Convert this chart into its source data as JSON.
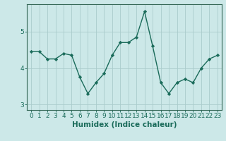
{
  "x": [
    0,
    1,
    2,
    3,
    4,
    5,
    6,
    7,
    8,
    9,
    10,
    11,
    12,
    13,
    14,
    15,
    16,
    17,
    18,
    19,
    20,
    21,
    22,
    23
  ],
  "y": [
    4.45,
    4.45,
    4.25,
    4.25,
    4.4,
    4.35,
    3.75,
    3.3,
    3.6,
    3.85,
    4.35,
    4.7,
    4.7,
    4.85,
    5.55,
    4.6,
    3.6,
    3.3,
    3.6,
    3.7,
    3.6,
    4.0,
    4.25,
    4.35
  ],
  "line_color": "#1a6b5a",
  "marker": "D",
  "marker_size": 2.2,
  "line_width": 1.0,
  "bg_color": "#cce8e8",
  "grid_color": "#aacccc",
  "xlabel": "Humidex (Indice chaleur)",
  "ylim": [
    2.85,
    5.75
  ],
  "yticks": [
    3,
    4,
    5
  ],
  "xlim": [
    -0.5,
    23.5
  ],
  "xticks": [
    0,
    1,
    2,
    3,
    4,
    5,
    6,
    7,
    8,
    9,
    10,
    11,
    12,
    13,
    14,
    15,
    16,
    17,
    18,
    19,
    20,
    21,
    22,
    23
  ],
  "tick_fontsize": 6.5,
  "xlabel_fontsize": 7.5,
  "spine_color": "#336655"
}
